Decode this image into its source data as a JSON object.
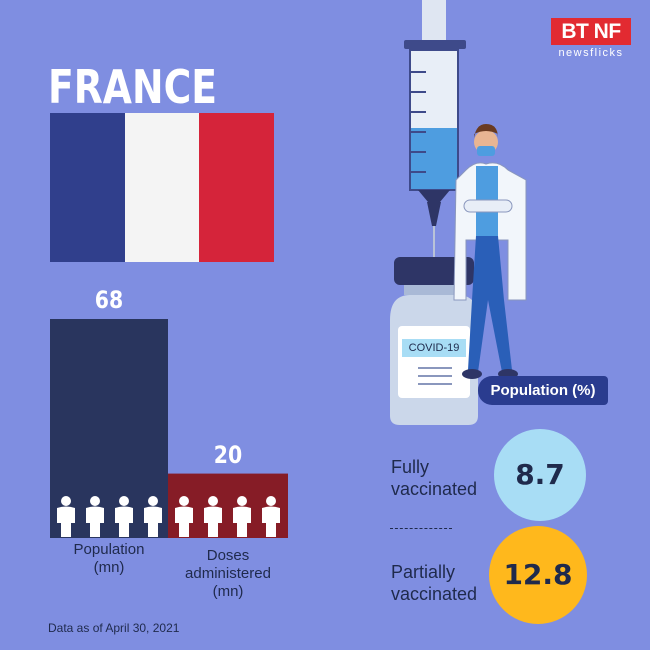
{
  "title": "FRANCE",
  "logo": {
    "brand": "BT NF",
    "sub": "newsflicks"
  },
  "flag_colors": [
    "#303f8c",
    "#f4f4f4",
    "#d5243a"
  ],
  "chart_data": {
    "type": "bar",
    "categories": [
      "Population\n(mn)",
      "Doses\nadministered\n(mn)"
    ],
    "values": [
      68,
      20
    ],
    "value_labels": [
      "68",
      "20"
    ],
    "colors": [
      "#29355e",
      "#861c26"
    ],
    "cat_lines": [
      [
        "Population",
        "(mn)"
      ],
      [
        "Doses",
        "administered",
        "(mn)"
      ]
    ]
  },
  "vaccine_label": "COVID-19",
  "population_badge": "Population (%)",
  "stats": {
    "fully": {
      "label1": "Fully",
      "label2": "vaccinated",
      "value": "8.7",
      "color": "#a8ddf5"
    },
    "partially": {
      "label1": "Partially",
      "label2": "vaccinated",
      "value": "12.8",
      "color": "#ffb81c"
    }
  },
  "footnote": "Data as of April 30, 2021"
}
